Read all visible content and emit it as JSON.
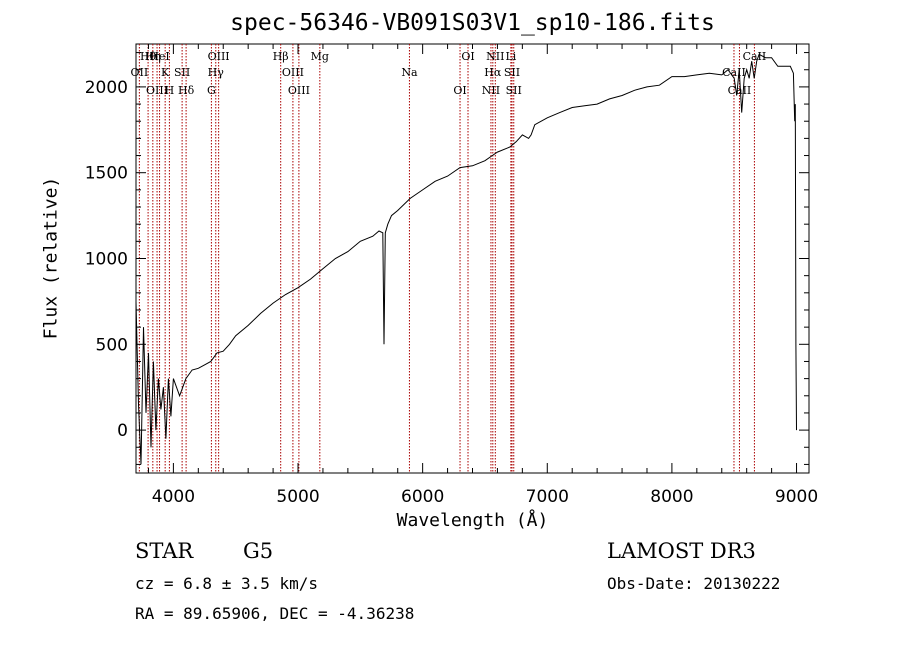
{
  "chart_data": {
    "type": "line",
    "title": "spec-56346-VB091S03V1_sp10-186.fits",
    "xlabel": "Wavelength (Å)",
    "ylabel": "Flux (relative)",
    "xlim": [
      3700,
      9100
    ],
    "ylim": [
      -250,
      2250
    ],
    "xticks": [
      4000,
      5000,
      6000,
      7000,
      8000,
      9000
    ],
    "xtick_labels": [
      "4000",
      "5000",
      "6000",
      "7000",
      "8000",
      "9000"
    ],
    "yticks": [
      0,
      500,
      1000,
      1500,
      2000
    ],
    "ytick_labels": [
      "0",
      "500",
      "1000",
      "1500",
      "2000"
    ],
    "grid": false,
    "series": [
      {
        "name": "flux",
        "x": [
          3700,
          3720,
          3740,
          3760,
          3780,
          3800,
          3820,
          3840,
          3860,
          3880,
          3900,
          3920,
          3940,
          3960,
          3980,
          4000,
          4050,
          4100,
          4150,
          4200,
          4250,
          4300,
          4350,
          4400,
          4450,
          4500,
          4600,
          4700,
          4800,
          4900,
          5000,
          5100,
          5200,
          5300,
          5400,
          5500,
          5600,
          5650,
          5680,
          5690,
          5700,
          5720,
          5750,
          5800,
          5900,
          6000,
          6100,
          6200,
          6300,
          6400,
          6500,
          6560,
          6600,
          6700,
          6750,
          6800,
          6850,
          6870,
          6900,
          7000,
          7100,
          7200,
          7300,
          7400,
          7500,
          7600,
          7700,
          7800,
          7900,
          8000,
          8100,
          8200,
          8300,
          8400,
          8450,
          8500,
          8520,
          8540,
          8560,
          8580,
          8600,
          8620,
          8640,
          8660,
          8680,
          8700,
          8750,
          8800,
          8850,
          8900,
          8950,
          8975,
          8985,
          8990,
          8995,
          9000
        ],
        "y": [
          750,
          150,
          -200,
          600,
          100,
          450,
          -100,
          400,
          0,
          300,
          120,
          250,
          -50,
          300,
          80,
          300,
          200,
          300,
          350,
          360,
          380,
          400,
          450,
          460,
          500,
          550,
          610,
          680,
          740,
          790,
          830,
          880,
          940,
          1000,
          1040,
          1100,
          1130,
          1160,
          1150,
          500,
          1150,
          1200,
          1250,
          1280,
          1350,
          1400,
          1450,
          1480,
          1530,
          1540,
          1570,
          1600,
          1620,
          1650,
          1680,
          1720,
          1700,
          1720,
          1780,
          1820,
          1850,
          1880,
          1890,
          1900,
          1930,
          1950,
          1980,
          2000,
          2010,
          2060,
          2060,
          2070,
          2080,
          2070,
          2100,
          2050,
          1950,
          2100,
          1850,
          2050,
          2100,
          2050,
          2150,
          2050,
          2150,
          2190,
          2170,
          2170,
          2120,
          2120,
          2120,
          2080,
          1800,
          1900,
          500,
          0
        ]
      }
    ],
    "lines": [
      {
        "label": "Hθ",
        "x": 3797
      },
      {
        "label": "OII",
        "x": 3727
      },
      {
        "label": "OIII",
        "x": 3869
      },
      {
        "label": "Hη",
        "x": 3835
      },
      {
        "label": "K",
        "x": 3934
      },
      {
        "label": "H",
        "x": 3968
      },
      {
        "label": "HeI",
        "x": 3889
      },
      {
        "label": "SII",
        "x": 4070
      },
      {
        "label": "Hδ",
        "x": 4102
      },
      {
        "label": "OIII",
        "x": 4363
      },
      {
        "label": "Hγ",
        "x": 4340
      },
      {
        "label": "G",
        "x": 4305
      },
      {
        "label": "Hβ",
        "x": 4861
      },
      {
        "label": "OIII",
        "x": 4959
      },
      {
        "label": "OIII",
        "x": 5007
      },
      {
        "label": "Mg",
        "x": 5175
      },
      {
        "label": "Na",
        "x": 5894
      },
      {
        "label": "OI",
        "x": 6300
      },
      {
        "label": "OI",
        "x": 6364
      },
      {
        "label": "Hα",
        "x": 6563
      },
      {
        "label": "NII",
        "x": 6548
      },
      {
        "label": "NII",
        "x": 6583
      },
      {
        "label": "SII",
        "x": 6717
      },
      {
        "label": "SII",
        "x": 6731
      },
      {
        "label": "Li",
        "x": 6708
      },
      {
        "label": "CaII",
        "x": 8498
      },
      {
        "label": "CaII",
        "x": 8542
      },
      {
        "label": "CaII",
        "x": 8662
      }
    ]
  },
  "footer": {
    "object_class": "STAR",
    "subclass": "G5",
    "survey": "LAMOST DR3",
    "cz": "cz = 6.8 ± 3.5 km/s",
    "obs_date": "Obs-Date: 20130222",
    "radec": "RA =  89.65906, DEC =  -4.36238"
  },
  "colors": {
    "line_marker": "#aa0000",
    "spectrum": "#000000"
  }
}
